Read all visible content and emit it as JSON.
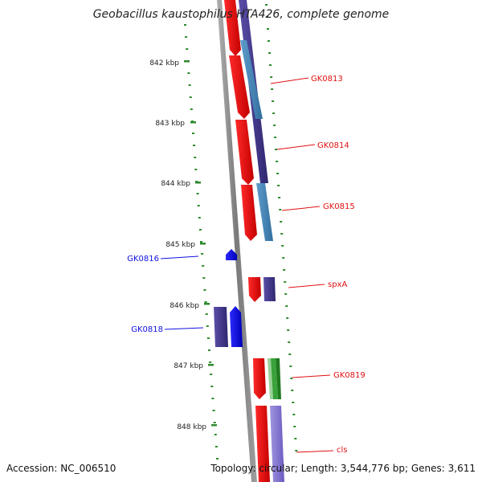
{
  "header": {
    "title": "Geobacillus kaustophilus HTA426, complete genome"
  },
  "footer": {
    "accession": "Accession: NC_006510",
    "summary": "Topology: circular; Length: 3,544,776 bp; Genes: 3,611"
  },
  "ruler": {
    "ticks": [
      "842 kbp",
      "843 kbp",
      "844 kbp",
      "845 kbp",
      "846 kbp",
      "847 kbp",
      "848 kbp"
    ],
    "color": "#2e8b2e"
  },
  "genes": [
    {
      "name": "GK0813",
      "strand": "forward",
      "color": "#e01010"
    },
    {
      "name": "GK0814",
      "strand": "forward",
      "color": "#e01010"
    },
    {
      "name": "GK0815",
      "strand": "forward",
      "color": "#e01010"
    },
    {
      "name": "GK0816",
      "strand": "reverse",
      "color": "#1010e0"
    },
    {
      "name": "spxA",
      "strand": "forward",
      "color": "#e01010"
    },
    {
      "name": "GK0818",
      "strand": "reverse",
      "color": "#1010e0"
    },
    {
      "name": "GK0819",
      "strand": "forward",
      "color": "#e01010"
    },
    {
      "name": "cls",
      "strand": "forward",
      "color": "#e01010"
    }
  ],
  "colors": {
    "forward": "#e01010",
    "reverse": "#1010e0",
    "backbone": "#8c8c8c",
    "cog_purple": "#4a3f8f",
    "cog_steel": "#4a86b8",
    "cog_green": "#3aa23a",
    "cog_lavender": "#8878d0"
  }
}
